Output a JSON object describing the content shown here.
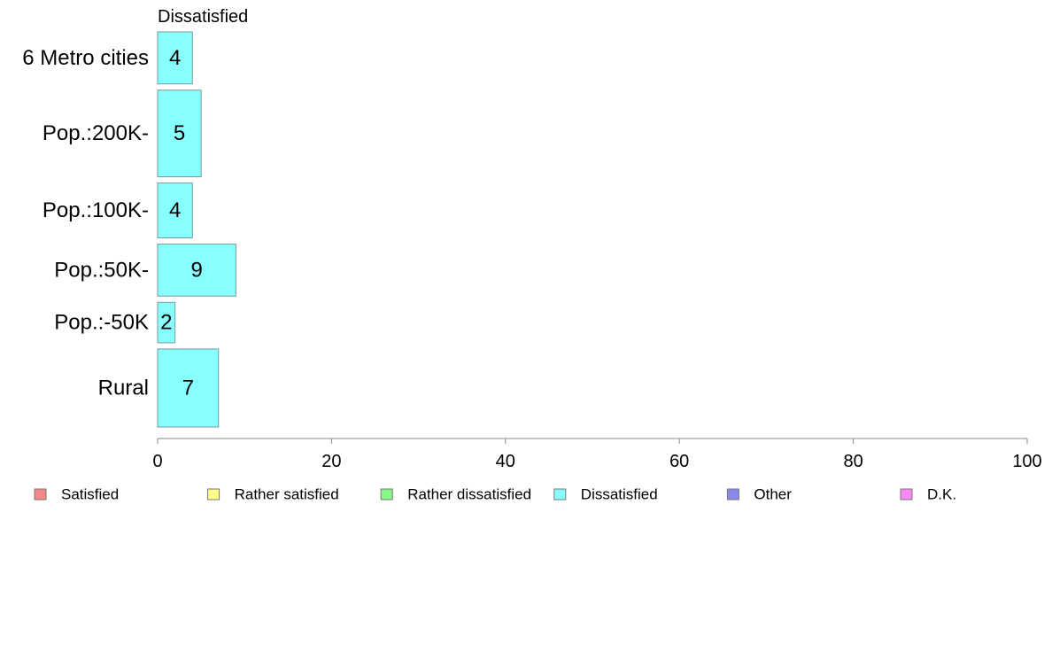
{
  "chart_data": {
    "type": "bar",
    "orientation": "horizontal",
    "title": "Dissatisfied",
    "categories": [
      "6 Metro cities",
      "Pop.:200K-",
      "Pop.:100K-",
      "Pop.:50K-",
      "Pop.:-50K",
      "Rural"
    ],
    "values": [
      4,
      5,
      4,
      9,
      2,
      7
    ],
    "relative_widths": [
      0.9,
      1.5,
      0.95,
      0.9,
      0.7,
      1.35
    ],
    "xlim": [
      0,
      100
    ],
    "xticks": [
      0,
      20,
      40,
      60,
      80,
      100
    ],
    "grid": false,
    "bar_color": "#88ffff",
    "legend_position": "bottom",
    "legend": [
      {
        "label": "Satisfied",
        "color": "#f28888"
      },
      {
        "label": "Rather satisfied",
        "color": "#ffff88"
      },
      {
        "label": "Rather dissatisfied",
        "color": "#88f888"
      },
      {
        "label": "Dissatisfied",
        "color": "#88ffff"
      },
      {
        "label": "Other",
        "color": "#8888ee"
      },
      {
        "label": "D.K.",
        "color": "#f888f8"
      }
    ]
  }
}
